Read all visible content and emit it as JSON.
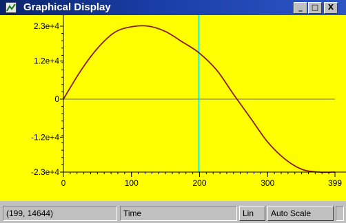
{
  "window": {
    "title": "Graphical Display",
    "app_icon": "chart-app-icon",
    "buttons": {
      "minimize": "_",
      "maximize": "□",
      "close": "X"
    }
  },
  "colors": {
    "plot_background": "#ffff00",
    "curve": "#8b1a1a",
    "cursor": "#00e5e5",
    "zero_line": "#707070"
  },
  "chart_data": {
    "type": "line",
    "title": "",
    "xlabel": "",
    "ylabel": "",
    "xlim": [
      0,
      399
    ],
    "ylim": [
      -23000,
      23000
    ],
    "y_ticks": [
      {
        "value": 23000,
        "label": "2.3e+4"
      },
      {
        "value": 12000,
        "label": "1.2e+4"
      },
      {
        "value": 0,
        "label": "0"
      },
      {
        "value": -12000,
        "label": "-1.2e+4"
      },
      {
        "value": -23000,
        "label": "-2.3e+4"
      }
    ],
    "x_ticks": [
      {
        "value": 0,
        "label": "0"
      },
      {
        "value": 100,
        "label": "100"
      },
      {
        "value": 200,
        "label": "200"
      },
      {
        "value": 300,
        "label": "300"
      },
      {
        "value": 399,
        "label": "399"
      }
    ],
    "cursor_x": 199,
    "series": [
      {
        "x": [
          0,
          25,
          50,
          75,
          100,
          125,
          150,
          175,
          199,
          225,
          250,
          275,
          300,
          325,
          350,
          375,
          399
        ],
        "y": [
          0,
          8800,
          16000,
          21000,
          22800,
          23000,
          21300,
          18000,
          14644,
          9200,
          1500,
          -6000,
          -13500,
          -18800,
          -22100,
          -23000,
          -23000
        ]
      }
    ]
  },
  "status": {
    "coords": "(199, 14644)",
    "x_axis_name": "Time",
    "scale_mode": "Lin",
    "auto_scale": "Auto Scale"
  }
}
